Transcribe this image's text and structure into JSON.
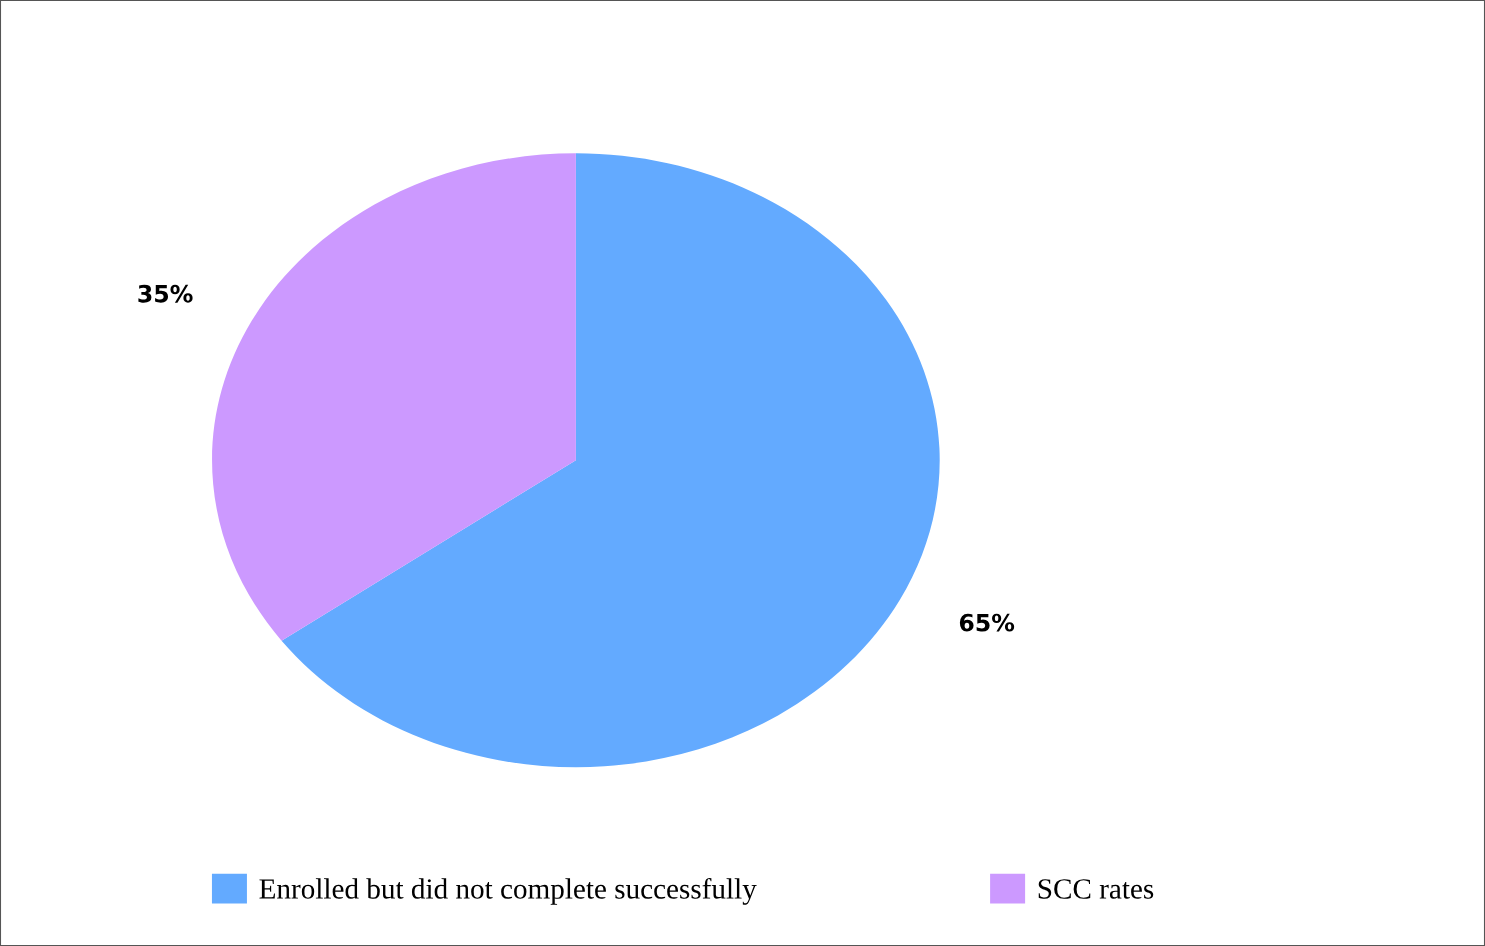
{
  "chart_data": {
    "type": "pie",
    "categories": [
      "Enrolled but did not complete successfully",
      "SCC rates"
    ],
    "values": [
      65,
      35
    ],
    "colors": [
      "#63aaff",
      "#cc99ff"
    ],
    "value_labels": [
      "65%",
      "35%"
    ],
    "legend": "bottom"
  }
}
